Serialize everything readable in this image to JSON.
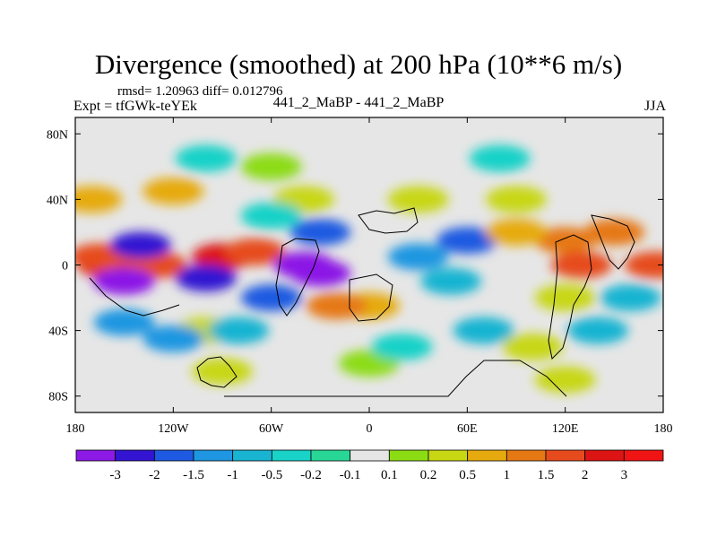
{
  "header": {
    "title": "Divergence (smoothed) at 200 hPa (10**6 m/s)",
    "stats": "rmsd= 1.20963 diff= 0.012796",
    "experiment": "Expt = tfGWk-teYEk",
    "cases": "441_2_MaBP - 441_2_MaBP",
    "season": "JJA"
  },
  "chart_data": {
    "type": "heatmap",
    "title": "Divergence (smoothed) at 200 hPa (10**6 m/s)",
    "xlabel": "",
    "ylabel": "",
    "xlim": [
      -180,
      180
    ],
    "ylim": [
      -90,
      90
    ],
    "x_ticks": [
      {
        "value": -180,
        "label": "180"
      },
      {
        "value": -120,
        "label": "120W"
      },
      {
        "value": -60,
        "label": "60W"
      },
      {
        "value": 0,
        "label": "0"
      },
      {
        "value": 60,
        "label": "60E"
      },
      {
        "value": 120,
        "label": "120E"
      },
      {
        "value": 180,
        "label": "180"
      }
    ],
    "y_ticks": [
      {
        "value": 80,
        "label": "80N"
      },
      {
        "value": 40,
        "label": "40N"
      },
      {
        "value": 0,
        "label": "0"
      },
      {
        "value": -40,
        "label": "40S"
      },
      {
        "value": -80,
        "label": "80S"
      }
    ],
    "colorbar": {
      "labels": [
        "-3",
        "-2",
        "-1.5",
        "-1",
        "-0.5",
        "-0.2",
        "-0.1",
        "0.1",
        "0.2",
        "0.5",
        "1",
        "1.5",
        "2",
        "3"
      ],
      "colors": [
        "#8c19e6",
        "#3214d2",
        "#1e5ae1",
        "#1e96e1",
        "#19b4d2",
        "#19d2c8",
        "#28d796",
        "#e6e6e6",
        "#8cdc14",
        "#c8d714",
        "#e6aa0f",
        "#e67814",
        "#e64b1e",
        "#dc1414",
        "#f01414"
      ]
    },
    "cells": [
      {
        "lon": -160,
        "lat": 0,
        "value": 3
      },
      {
        "lon": -90,
        "lat": 5,
        "value": 3
      },
      {
        "lon": -70,
        "lat": 8,
        "value": 2
      },
      {
        "lon": -165,
        "lat": 5,
        "value": 2
      },
      {
        "lon": -130,
        "lat": 0,
        "value": 2
      },
      {
        "lon": -40,
        "lat": 0,
        "value": -3
      },
      {
        "lon": -30,
        "lat": -5,
        "value": -3
      },
      {
        "lon": -150,
        "lat": -10,
        "value": -3
      },
      {
        "lon": -140,
        "lat": 12,
        "value": -2
      },
      {
        "lon": -100,
        "lat": -8,
        "value": -2
      },
      {
        "lon": -60,
        "lat": -20,
        "value": -1.5
      },
      {
        "lon": -30,
        "lat": 20,
        "value": -1.5
      },
      {
        "lon": 30,
        "lat": 5,
        "value": -1
      },
      {
        "lon": 60,
        "lat": 15,
        "value": -1.5
      },
      {
        "lon": 50,
        "lat": -10,
        "value": -0.5
      },
      {
        "lon": 120,
        "lat": 15,
        "value": 1.5
      },
      {
        "lon": 130,
        "lat": 0,
        "value": 2
      },
      {
        "lon": 150,
        "lat": 20,
        "value": 1.5
      },
      {
        "lon": 175,
        "lat": 0,
        "value": 2
      },
      {
        "lon": 90,
        "lat": 20,
        "value": 1
      },
      {
        "lon": 0,
        "lat": -25,
        "value": 1
      },
      {
        "lon": -20,
        "lat": -25,
        "value": 1.5
      },
      {
        "lon": -170,
        "lat": 40,
        "value": 1
      },
      {
        "lon": -120,
        "lat": 45,
        "value": 1
      },
      {
        "lon": -40,
        "lat": 40,
        "value": 0.5
      },
      {
        "lon": 30,
        "lat": 40,
        "value": 0.5
      },
      {
        "lon": 90,
        "lat": 40,
        "value": 0.5
      },
      {
        "lon": -100,
        "lat": -40,
        "value": 0.5
      },
      {
        "lon": -150,
        "lat": -35,
        "value": -1
      },
      {
        "lon": -120,
        "lat": -45,
        "value": -1
      },
      {
        "lon": -80,
        "lat": -40,
        "value": -0.5
      },
      {
        "lon": 70,
        "lat": -40,
        "value": -0.5
      },
      {
        "lon": 140,
        "lat": -40,
        "value": -0.5
      },
      {
        "lon": 100,
        "lat": -50,
        "value": 0.5
      },
      {
        "lon": -90,
        "lat": -65,
        "value": 0.5
      },
      {
        "lon": 120,
        "lat": -70,
        "value": 0.5
      },
      {
        "lon": 0,
        "lat": -60,
        "value": 0.2
      },
      {
        "lon": -60,
        "lat": 60,
        "value": 0.2
      },
      {
        "lon": 80,
        "lat": 65,
        "value": -0.2
      },
      {
        "lon": -100,
        "lat": 65,
        "value": -0.2
      },
      {
        "lon": 120,
        "lat": -20,
        "value": 0.5
      },
      {
        "lon": 160,
        "lat": -20,
        "value": -0.5
      },
      {
        "lon": 20,
        "lat": -50,
        "value": -0.2
      },
      {
        "lon": -60,
        "lat": 30,
        "value": -0.2
      }
    ]
  }
}
